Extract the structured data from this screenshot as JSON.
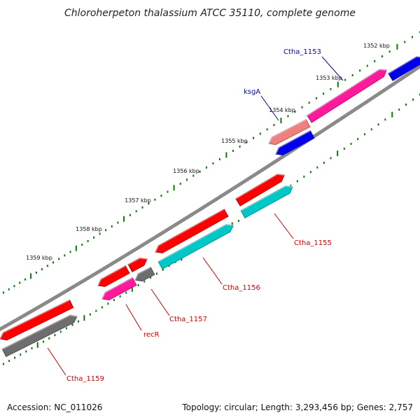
{
  "title": "Chloroherpeton thalassium ATCC 35110, complete genome",
  "accession": "Accession: NC_011026",
  "summary": "Topology: circular; Length: 3,293,456 bp; Genes: 2,757",
  "colors": {
    "backbone": "#8a8a8a",
    "tick": "#0a7a0a",
    "red": "#ff0000",
    "magenta": "#ff1a9c",
    "blue": "#0000ee",
    "cyan": "#00c8c8",
    "gray": "#6e6e6e",
    "salmon": "#f08080",
    "label_blue": "#0000bb",
    "label_red": "#cc0000"
  },
  "ticks": [
    "1352 kbp",
    "1353 kbp",
    "1354 kbp",
    "1355 kbp",
    "1356 kbp",
    "1357 kbp",
    "1358 kbp",
    "1359 kbp"
  ],
  "genes": [
    {
      "color": "magenta"
    },
    {
      "color": "blue"
    },
    {
      "color": "salmon"
    },
    {
      "color": "blue"
    },
    {
      "color": "red"
    },
    {
      "color": "cyan"
    },
    {
      "color": "red"
    },
    {
      "color": "cyan"
    },
    {
      "color": "red"
    },
    {
      "color": "gray"
    },
    {
      "color": "red"
    },
    {
      "color": "magenta"
    },
    {
      "color": "red"
    },
    {
      "color": "gray"
    }
  ],
  "labels": [
    {
      "text": "Ctha_1153",
      "color": "label_blue"
    },
    {
      "text": "ksgA",
      "color": "label_blue"
    },
    {
      "text": "Ctha_1155",
      "color": "label_red"
    },
    {
      "text": "Ctha_1156",
      "color": "label_red"
    },
    {
      "text": "Ctha_1157",
      "color": "label_red"
    },
    {
      "text": "recR",
      "color": "label_red"
    },
    {
      "text": "Ctha_1159",
      "color": "label_red"
    }
  ]
}
